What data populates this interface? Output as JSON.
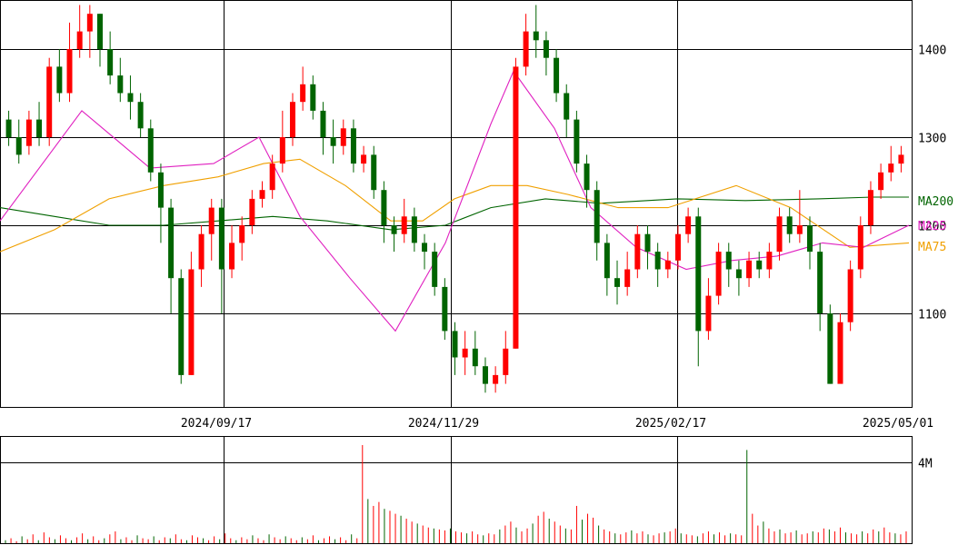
{
  "chart_data": {
    "type": "candlestick",
    "colors": {
      "up": "#ff0000",
      "down": "#006400",
      "ma25": "#e020c0",
      "ma75": "#f0a000",
      "ma200": "#006400",
      "grid": "#000000",
      "volume": "#ff0000"
    },
    "y_axis": {
      "ticks": [
        1100,
        1200,
        1300,
        1400
      ],
      "range": [
        1000,
        1460
      ]
    },
    "x_axis": {
      "ticks": [
        "2024/09/17",
        "2024/11/29",
        "2025/02/17",
        "2025/05/01"
      ]
    },
    "legend": [
      "MA200",
      "MA25",
      "MA75"
    ],
    "volume_axis": {
      "ticks": [
        "4M"
      ]
    },
    "candles": [
      [
        1320,
        1300,
        1330,
        1290
      ],
      [
        1300,
        1280,
        1320,
        1270
      ],
      [
        1290,
        1320,
        1330,
        1280
      ],
      [
        1320,
        1300,
        1340,
        1290
      ],
      [
        1300,
        1380,
        1390,
        1290
      ],
      [
        1380,
        1350,
        1400,
        1340
      ],
      [
        1350,
        1400,
        1430,
        1340
      ],
      [
        1400,
        1420,
        1450,
        1390
      ],
      [
        1420,
        1440,
        1450,
        1390
      ],
      [
        1440,
        1400,
        1440,
        1380
      ],
      [
        1400,
        1370,
        1420,
        1360
      ],
      [
        1370,
        1350,
        1390,
        1340
      ],
      [
        1350,
        1340,
        1370,
        1320
      ],
      [
        1340,
        1310,
        1350,
        1300
      ],
      [
        1310,
        1260,
        1320,
        1250
      ],
      [
        1260,
        1220,
        1270,
        1180
      ],
      [
        1220,
        1140,
        1230,
        1100
      ],
      [
        1140,
        1030,
        1150,
        1020
      ],
      [
        1030,
        1150,
        1170,
        1030
      ],
      [
        1150,
        1190,
        1200,
        1130
      ],
      [
        1190,
        1220,
        1230,
        1160
      ],
      [
        1220,
        1150,
        1230,
        1100
      ],
      [
        1150,
        1180,
        1200,
        1140
      ],
      [
        1180,
        1200,
        1210,
        1160
      ],
      [
        1200,
        1230,
        1240,
        1190
      ],
      [
        1230,
        1240,
        1250,
        1220
      ],
      [
        1240,
        1270,
        1280,
        1230
      ],
      [
        1270,
        1300,
        1330,
        1260
      ],
      [
        1300,
        1340,
        1350,
        1290
      ],
      [
        1340,
        1360,
        1380,
        1330
      ],
      [
        1360,
        1330,
        1370,
        1320
      ],
      [
        1330,
        1300,
        1340,
        1280
      ],
      [
        1300,
        1290,
        1320,
        1270
      ],
      [
        1290,
        1310,
        1320,
        1280
      ],
      [
        1310,
        1270,
        1320,
        1260
      ],
      [
        1270,
        1280,
        1290,
        1260
      ],
      [
        1280,
        1240,
        1290,
        1230
      ],
      [
        1240,
        1200,
        1250,
        1180
      ],
      [
        1200,
        1190,
        1210,
        1170
      ],
      [
        1190,
        1210,
        1230,
        1180
      ],
      [
        1210,
        1180,
        1220,
        1170
      ],
      [
        1180,
        1170,
        1190,
        1150
      ],
      [
        1170,
        1130,
        1180,
        1120
      ],
      [
        1130,
        1080,
        1140,
        1070
      ],
      [
        1080,
        1050,
        1090,
        1030
      ],
      [
        1050,
        1060,
        1080,
        1030
      ],
      [
        1060,
        1040,
        1080,
        1030
      ],
      [
        1040,
        1020,
        1050,
        1010
      ],
      [
        1020,
        1030,
        1040,
        1010
      ],
      [
        1030,
        1060,
        1080,
        1020
      ],
      [
        1060,
        1380,
        1390,
        1060
      ],
      [
        1380,
        1420,
        1440,
        1370
      ],
      [
        1420,
        1410,
        1450,
        1390
      ],
      [
        1410,
        1390,
        1420,
        1370
      ],
      [
        1390,
        1350,
        1400,
        1340
      ],
      [
        1350,
        1320,
        1360,
        1300
      ],
      [
        1320,
        1270,
        1330,
        1260
      ],
      [
        1270,
        1240,
        1280,
        1220
      ],
      [
        1240,
        1180,
        1250,
        1160
      ],
      [
        1180,
        1140,
        1190,
        1120
      ],
      [
        1140,
        1130,
        1160,
        1110
      ],
      [
        1130,
        1150,
        1170,
        1120
      ],
      [
        1150,
        1190,
        1200,
        1140
      ],
      [
        1190,
        1170,
        1200,
        1150
      ],
      [
        1170,
        1150,
        1180,
        1130
      ],
      [
        1150,
        1160,
        1170,
        1140
      ],
      [
        1160,
        1190,
        1200,
        1150
      ],
      [
        1190,
        1210,
        1220,
        1180
      ],
      [
        1210,
        1080,
        1220,
        1040
      ],
      [
        1080,
        1120,
        1140,
        1070
      ],
      [
        1120,
        1170,
        1180,
        1110
      ],
      [
        1170,
        1150,
        1180,
        1130
      ],
      [
        1150,
        1140,
        1160,
        1120
      ],
      [
        1140,
        1160,
        1170,
        1130
      ],
      [
        1160,
        1150,
        1170,
        1140
      ],
      [
        1150,
        1170,
        1180,
        1140
      ],
      [
        1170,
        1210,
        1220,
        1160
      ],
      [
        1210,
        1190,
        1220,
        1180
      ],
      [
        1190,
        1200,
        1240,
        1180
      ],
      [
        1200,
        1170,
        1210,
        1150
      ],
      [
        1170,
        1100,
        1180,
        1080
      ],
      [
        1100,
        1020,
        1110,
        1020
      ],
      [
        1020,
        1090,
        1100,
        1060
      ],
      [
        1090,
        1150,
        1160,
        1080
      ],
      [
        1150,
        1200,
        1210,
        1140
      ],
      [
        1200,
        1240,
        1250,
        1190
      ],
      [
        1240,
        1260,
        1270,
        1230
      ],
      [
        1260,
        1270,
        1290,
        1250
      ],
      [
        1270,
        1280,
        1290,
        1260
      ]
    ],
    "ma25": [
      [
        0,
        1205
      ],
      [
        90,
        1330
      ],
      [
        165,
        1265
      ],
      [
        235,
        1270
      ],
      [
        285,
        1300
      ],
      [
        330,
        1210
      ],
      [
        385,
        1140
      ],
      [
        435,
        1080
      ],
      [
        490,
        1180
      ],
      [
        540,
        1315
      ],
      [
        565,
        1375
      ],
      [
        610,
        1310
      ],
      [
        650,
        1220
      ],
      [
        700,
        1175
      ],
      [
        755,
        1150
      ],
      [
        805,
        1160
      ],
      [
        855,
        1165
      ],
      [
        905,
        1180
      ],
      [
        950,
        1175
      ],
      [
        1000,
        1200
      ]
    ],
    "ma75": [
      [
        0,
        1170
      ],
      [
        60,
        1195
      ],
      [
        120,
        1230
      ],
      [
        180,
        1245
      ],
      [
        240,
        1255
      ],
      [
        290,
        1270
      ],
      [
        330,
        1275
      ],
      [
        380,
        1245
      ],
      [
        430,
        1205
      ],
      [
        465,
        1205
      ],
      [
        500,
        1230
      ],
      [
        540,
        1245
      ],
      [
        580,
        1245
      ],
      [
        625,
        1235
      ],
      [
        680,
        1220
      ],
      [
        735,
        1220
      ],
      [
        810,
        1245
      ],
      [
        870,
        1220
      ],
      [
        935,
        1175
      ],
      [
        1000,
        1180
      ]
    ],
    "ma200": [
      [
        0,
        1220
      ],
      [
        60,
        1210
      ],
      [
        120,
        1200
      ],
      [
        180,
        1200
      ],
      [
        240,
        1205
      ],
      [
        300,
        1210
      ],
      [
        360,
        1205
      ],
      [
        430,
        1195
      ],
      [
        490,
        1200
      ],
      [
        540,
        1220
      ],
      [
        600,
        1230
      ],
      [
        660,
        1225
      ],
      [
        745,
        1230
      ],
      [
        820,
        1228
      ],
      [
        900,
        1230
      ],
      [
        960,
        1232
      ],
      [
        1000,
        1232
      ]
    ],
    "volume": [
      3,
      5,
      2,
      7,
      4,
      9,
      3,
      11,
      6,
      4,
      8,
      5,
      3,
      6,
      10,
      4,
      7,
      3,
      5,
      9,
      12,
      4,
      6,
      3,
      8,
      5,
      4,
      7,
      3,
      6,
      5,
      9,
      4,
      3,
      8,
      6,
      5,
      3,
      7,
      4,
      10,
      5,
      3,
      6,
      4,
      8,
      5,
      3,
      9,
      6,
      4,
      7,
      5,
      3,
      6,
      4,
      8,
      3,
      5,
      7,
      4,
      6,
      3,
      9,
      5,
      100,
      45,
      38,
      42,
      35,
      33,
      30,
      28,
      25,
      22,
      20,
      18,
      16,
      15,
      14,
      13,
      15,
      12,
      11,
      10,
      12,
      9,
      8,
      10,
      9,
      14,
      18,
      22,
      16,
      12,
      15,
      20,
      28,
      32,
      25,
      22,
      18,
      15,
      14,
      38,
      24,
      30,
      26,
      18,
      14,
      12,
      10,
      9,
      11,
      13,
      10,
      12,
      9,
      8,
      10,
      11,
      12,
      15,
      10,
      9,
      8,
      7,
      10,
      12,
      9,
      11,
      8,
      10,
      9,
      8,
      95,
      30,
      18,
      22,
      15,
      12,
      14,
      10,
      11,
      13,
      9,
      10,
      12,
      11,
      15,
      14,
      12,
      16,
      11,
      10,
      9,
      12,
      10,
      14,
      12,
      16,
      11,
      10,
      9,
      12
    ]
  }
}
